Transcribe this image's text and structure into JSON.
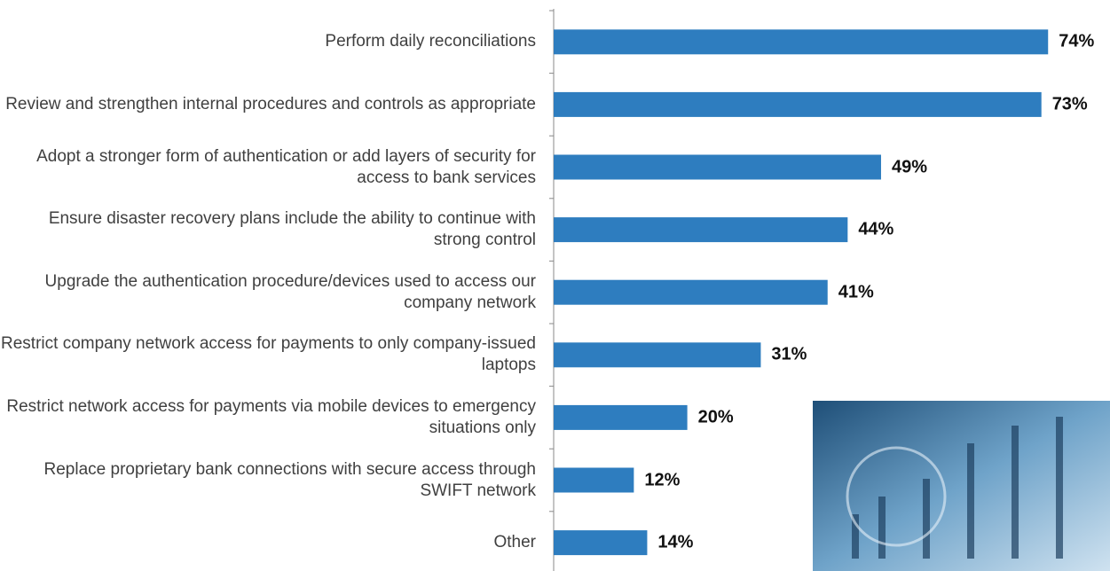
{
  "chart_data": {
    "type": "hbar",
    "categories": [
      "Perform daily reconciliations",
      "Review and strengthen internal procedures and controls as appropriate",
      "Adopt a stronger form of authentication or add layers of security for access to bank services",
      "Ensure disaster recovery plans include the ability to continue with strong control",
      "Upgrade the authentication procedure/devices used to access our company network",
      "Restrict company network access for payments to only company-issued laptops",
      "Restrict network access for payments via mobile devices to emergency situations only",
      "Replace proprietary bank connections with secure access through SWIFT network",
      "Other"
    ],
    "values": [
      74,
      73,
      49,
      44,
      41,
      31,
      20,
      12,
      14
    ],
    "value_labels": [
      "74%",
      "73%",
      "49%",
      "44%",
      "41%",
      "31%",
      "20%",
      "12%",
      "14%"
    ],
    "color": "#2e7dbf",
    "xlim": [
      0,
      83
    ]
  }
}
